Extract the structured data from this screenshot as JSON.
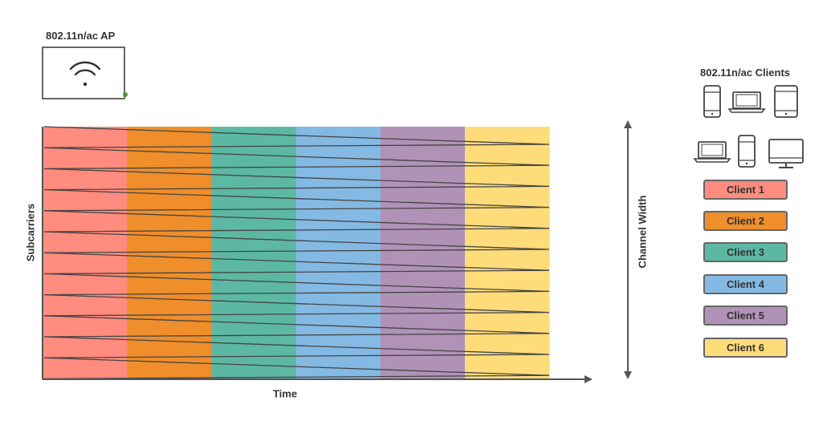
{
  "access_point": {
    "title": "802.11n/ac AP",
    "status_color": "#4a9a3a"
  },
  "clients_panel": {
    "title": "802.11n/ac Clients",
    "devices": [
      "phone-icon",
      "laptop-icon",
      "tablet-icon",
      "laptop-icon",
      "phone-icon",
      "monitor-icon"
    ]
  },
  "axes": {
    "x": "Time",
    "y": "Subcarriers",
    "channel": "Channel Width"
  },
  "clients": [
    {
      "label": "Client 1",
      "color": "#ff8c7e"
    },
    {
      "label": "Client 2",
      "color": "#ef8e2b"
    },
    {
      "label": "Client 3",
      "color": "#5cb8a3"
    },
    {
      "label": "Client 4",
      "color": "#84b9e3"
    },
    {
      "label": "Client 5",
      "color": "#b092b7"
    },
    {
      "label": "Client 6",
      "color": "#fedc7a"
    }
  ]
}
